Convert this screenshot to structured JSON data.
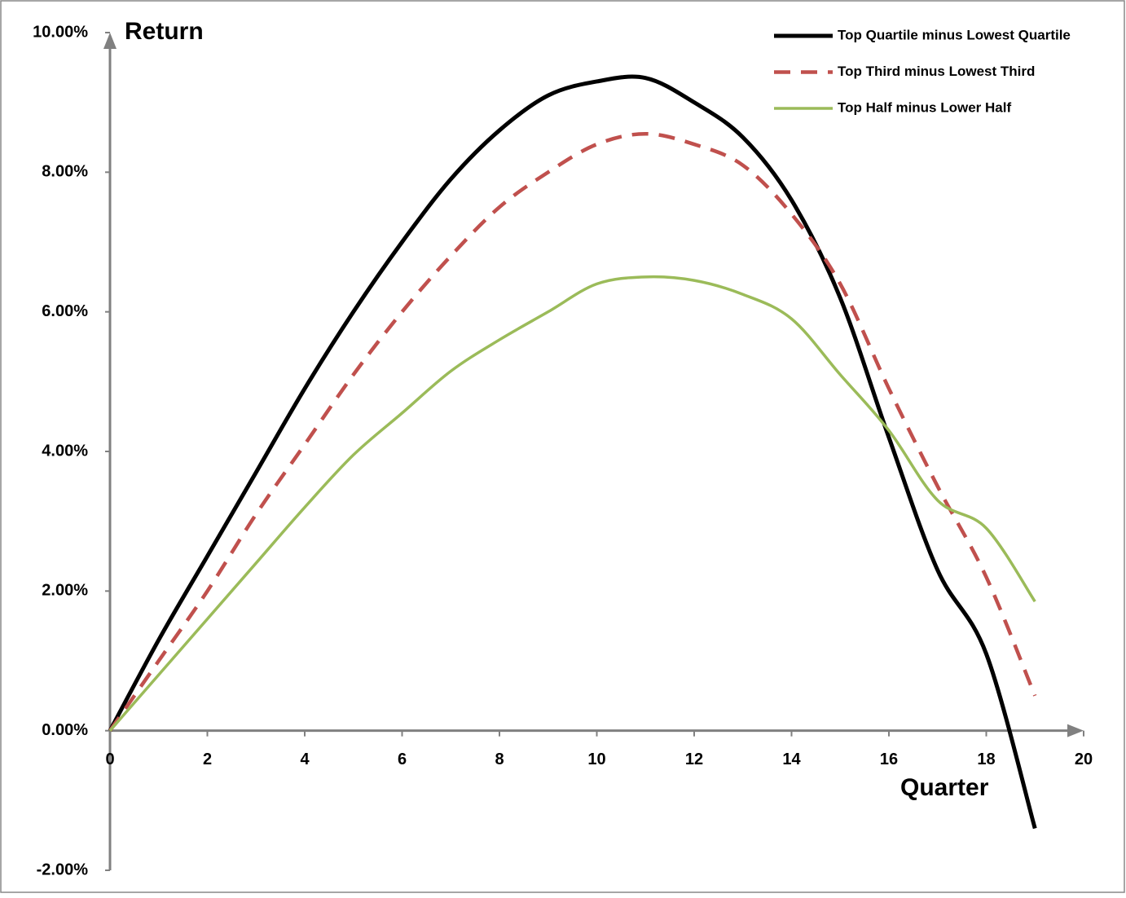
{
  "chart_data": {
    "type": "line",
    "x_label": "Quarter",
    "y_label": "Return",
    "x": [
      0,
      1,
      2,
      3,
      4,
      5,
      6,
      7,
      8,
      9,
      10,
      11,
      12,
      13,
      14,
      15,
      16,
      17,
      18,
      19
    ],
    "series": [
      {
        "name": "Top Quartile minus Lowest Quartile",
        "color": "#000000",
        "style": "solid",
        "values": [
          0,
          1.3,
          2.5,
          3.7,
          4.9,
          6.0,
          7.0,
          7.9,
          8.6,
          9.1,
          9.3,
          9.35,
          9.0,
          8.5,
          7.6,
          6.2,
          4.2,
          2.3,
          1.1,
          -1.4
        ]
      },
      {
        "name": "Top Third minus Lowest Third",
        "color": "#c0504d",
        "style": "dashed",
        "values": [
          0,
          1.0,
          2.0,
          3.1,
          4.1,
          5.1,
          6.0,
          6.8,
          7.5,
          8.0,
          8.4,
          8.55,
          8.4,
          8.1,
          7.4,
          6.4,
          4.9,
          3.5,
          2.2,
          0.5
        ]
      },
      {
        "name": "Top Half minus Lower Half",
        "color": "#9bbb59",
        "style": "solid",
        "values": [
          0,
          0.8,
          1.6,
          2.4,
          3.2,
          3.95,
          4.55,
          5.15,
          5.6,
          6.0,
          6.4,
          6.5,
          6.45,
          6.25,
          5.9,
          5.1,
          4.3,
          3.3,
          2.9,
          1.85
        ]
      }
    ],
    "xlim": [
      0,
      20
    ],
    "xticks": [
      0,
      2,
      4,
      6,
      8,
      10,
      12,
      14,
      16,
      18,
      20
    ],
    "ylim": [
      -2,
      10
    ],
    "yticks": [
      {
        "value": -2,
        "label": "-2.00%"
      },
      {
        "value": 0,
        "label": "0.00%"
      },
      {
        "value": 2,
        "label": "2.00%"
      },
      {
        "value": 4,
        "label": "4.00%"
      },
      {
        "value": 6,
        "label": "6.00%"
      },
      {
        "value": 8,
        "label": "8.00%"
      },
      {
        "value": 10,
        "label": "10.00%"
      }
    ],
    "grid": false,
    "legend": "top-right"
  }
}
